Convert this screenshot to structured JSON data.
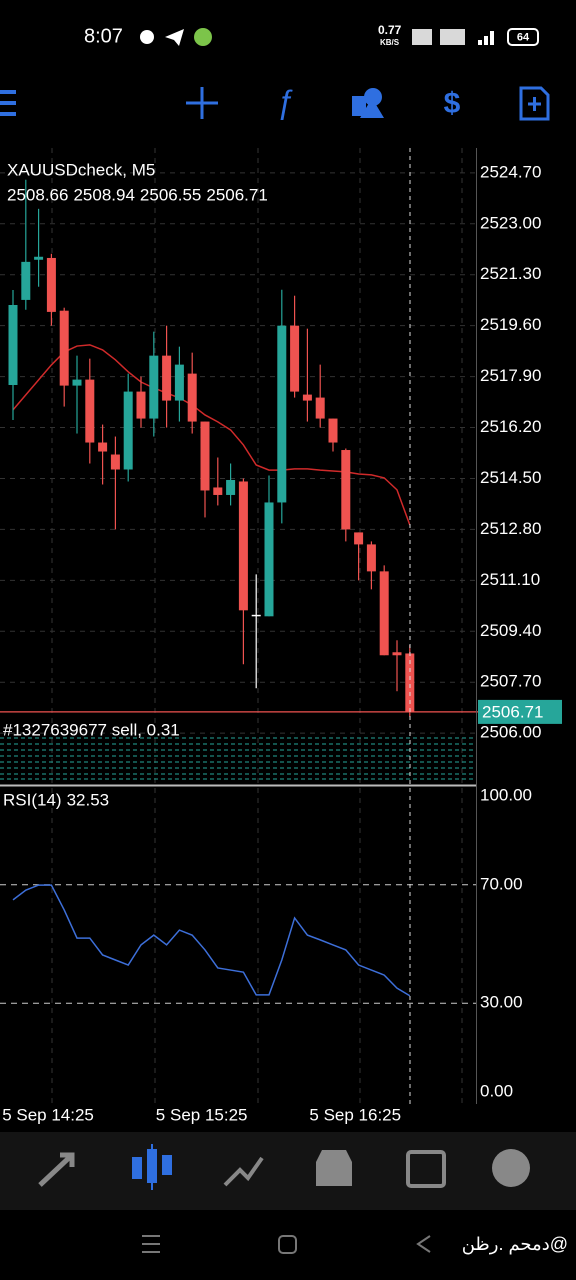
{
  "status_bar": {
    "time": "8:07",
    "speed": "0.77",
    "speed_unit": "KB/S",
    "battery": "64"
  },
  "order_label": "#1327639677 sell, 0.31",
  "watermark": "دمحم .رظن@",
  "chart_data": [
    {
      "type": "candlestick",
      "title": "XAUUSDcheck, M5",
      "up_color": "#26a69a",
      "down_color": "#ef5350",
      "doji_color": "#ffffff",
      "open": [
        2517.62,
        2520.46,
        2521.8,
        2521.86,
        2520.1,
        2517.6,
        2517.8,
        2515.7,
        2515.3,
        2514.8,
        2517.4,
        2516.5,
        2518.6,
        2517.1,
        2518.0,
        2516.4,
        2514.2,
        2513.95,
        2514.4,
        2509.95,
        2509.9,
        2513.7,
        2519.6,
        2517.3,
        2517.2,
        2516.5,
        2515.45,
        2512.7,
        2512.3,
        2511.4,
        2508.7,
        2508.66
      ],
      "high": [
        2520.79,
        2524.47,
        2523.5,
        2522.0,
        2520.2,
        2518.6,
        2518.5,
        2516.3,
        2515.9,
        2518.0,
        2517.9,
        2519.4,
        2519.6,
        2518.9,
        2518.7,
        2516.4,
        2515.2,
        2515.0,
        2514.5,
        2511.3,
        2514.6,
        2520.8,
        2520.6,
        2519.5,
        2518.3,
        2516.5,
        2515.5,
        2512.7,
        2512.4,
        2511.6,
        2509.1,
        2508.94
      ],
      "low": [
        2516.45,
        2520.13,
        2520.9,
        2519.6,
        2516.9,
        2516.0,
        2515.0,
        2514.3,
        2512.8,
        2514.4,
        2516.2,
        2515.9,
        2516.2,
        2516.4,
        2516.0,
        2513.2,
        2513.6,
        2513.6,
        2508.3,
        2507.5,
        2509.9,
        2513.0,
        2517.2,
        2516.4,
        2516.2,
        2515.4,
        2512.4,
        2511.1,
        2510.8,
        2508.6,
        2507.4,
        2506.55
      ],
      "close": [
        2520.29,
        2521.73,
        2521.9,
        2520.06,
        2517.6,
        2517.8,
        2515.7,
        2515.4,
        2514.8,
        2517.4,
        2516.5,
        2518.6,
        2517.1,
        2518.3,
        2516.4,
        2514.1,
        2513.95,
        2514.45,
        2510.1,
        2509.95,
        2513.7,
        2519.6,
        2517.4,
        2517.1,
        2516.5,
        2515.7,
        2512.8,
        2512.3,
        2511.4,
        2508.6,
        2508.6,
        2506.71
      ],
      "ma": {
        "color": "#d02a2a",
        "values": [
          2516.79,
          2517.29,
          2517.79,
          2518.29,
          2518.72,
          2518.92,
          2518.96,
          2518.79,
          2518.46,
          2518.06,
          2517.72,
          2517.52,
          2517.35,
          2517.19,
          2516.95,
          2516.62,
          2516.39,
          2516.12,
          2515.62,
          2514.95,
          2514.78,
          2514.78,
          2514.82,
          2514.82,
          2514.78,
          2514.75,
          2514.72,
          2514.65,
          2514.62,
          2514.52,
          2514.12,
          2512.95
        ]
      },
      "price_line_color": "#ef5350",
      "price_label_color": "#26a69a",
      "ylim": [
        2504.27,
        2525.53
      ],
      "yticks": [
        {
          "value": 2524.7,
          "label": "2524.70"
        },
        {
          "value": 2523.0,
          "label": "2523.00"
        },
        {
          "value": 2521.3,
          "label": "2521.30"
        },
        {
          "value": 2519.6,
          "label": "2519.60"
        },
        {
          "value": 2517.9,
          "label": "2517.90"
        },
        {
          "value": 2516.2,
          "label": "2516.20"
        },
        {
          "value": 2514.5,
          "label": "2514.50"
        },
        {
          "value": 2512.8,
          "label": "2512.80"
        },
        {
          "value": 2511.1,
          "label": "2511.10"
        },
        {
          "value": 2509.4,
          "label": "2509.40"
        },
        {
          "value": 2507.7,
          "label": "2507.70"
        },
        {
          "value": 2506.0,
          "label": "2506.00"
        }
      ],
      "xticks": [
        {
          "value": -1,
          "label": "5 Sep 14:25"
        },
        {
          "value": 11,
          "label": "5 Sep 15:25"
        },
        {
          "value": 23,
          "label": "5 Sep 16:25"
        }
      ],
      "grid": true
    },
    {
      "type": "line",
      "title": "RSI(14)",
      "color": "#3d6fd9",
      "values": [
        64.9,
        68.2,
        69.9,
        69.9,
        61.5,
        52.0,
        52.0,
        46.3,
        44.6,
        42.9,
        49.7,
        53.0,
        49.7,
        54.7,
        53.0,
        48.0,
        41.9,
        41.2,
        40.5,
        32.8,
        32.8,
        44.6,
        58.8,
        53.0,
        51.4,
        49.7,
        48.0,
        42.9,
        41.2,
        39.5,
        35.1,
        32.53
      ],
      "ylim": [
        -4.05,
        103.04
      ],
      "yticks": [
        {
          "value": 100,
          "label": "100.00"
        },
        {
          "value": 70,
          "label": "70.00"
        },
        {
          "value": 30,
          "label": "30.00"
        },
        {
          "value": 0,
          "label": "0.00"
        }
      ],
      "grid": true
    }
  ]
}
